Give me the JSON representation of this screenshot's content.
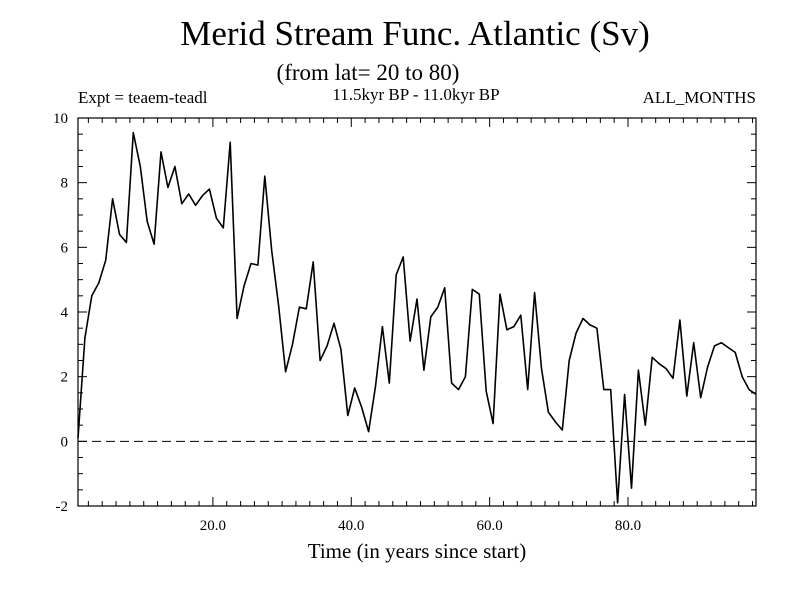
{
  "chart_data": {
    "type": "line",
    "title": "Merid Stream Func. Atlantic (Sv)",
    "subtitle": "(from lat= 20 to 80)",
    "annotations": {
      "left": "Expt = teaem-teadl",
      "center": "11.5kyr BP - 11.0kyr BP",
      "right": "ALL_MONTHS"
    },
    "xlabel": "Time (in years since start)",
    "ylabel": "",
    "xlim": [
      0.5,
      98.5
    ],
    "ylim": [
      -2,
      10
    ],
    "xticks": [
      20,
      40,
      60,
      80
    ],
    "xtick_labels": [
      "20.0",
      "40.0",
      "60.0",
      "80.0"
    ],
    "yticks": [
      -2,
      0,
      2,
      4,
      6,
      8,
      10
    ],
    "ytick_labels": [
      "-2",
      "0",
      "2",
      "4",
      "6",
      "8",
      "10"
    ],
    "reference_line": {
      "y": 0,
      "style": "dashed"
    },
    "series": [
      {
        "name": "Merid Stream Func.",
        "x": [
          0.5,
          1.5,
          2.5,
          3.5,
          4.5,
          5.5,
          6.5,
          7.5,
          8.5,
          9.5,
          10.5,
          11.5,
          12.5,
          13.5,
          14.5,
          15.5,
          16.5,
          17.5,
          18.5,
          19.5,
          20.5,
          21.5,
          22.5,
          23.5,
          24.5,
          25.5,
          26.5,
          27.5,
          28.5,
          29.5,
          30.5,
          31.5,
          32.5,
          33.5,
          34.5,
          35.5,
          36.5,
          37.5,
          38.5,
          39.5,
          40.5,
          41.5,
          42.5,
          43.5,
          44.5,
          45.5,
          46.5,
          47.5,
          48.5,
          49.5,
          50.5,
          51.5,
          52.5,
          53.5,
          54.5,
          55.5,
          56.5,
          57.5,
          58.5,
          59.5,
          60.5,
          61.5,
          62.5,
          63.5,
          64.5,
          65.5,
          66.5,
          67.5,
          68.5,
          69.5,
          70.5,
          71.5,
          72.5,
          73.5,
          74.5,
          75.5,
          76.5,
          77.5,
          78.5,
          79.5,
          80.5,
          81.5,
          82.5,
          83.5,
          84.5,
          85.5,
          86.5,
          87.5,
          88.5,
          89.5,
          90.5,
          91.5,
          92.5,
          93.5,
          94.5,
          95.5,
          96.5,
          97.5,
          98.5
        ],
        "values": [
          0.1,
          3.2,
          4.5,
          4.9,
          5.6,
          7.5,
          6.4,
          6.15,
          9.55,
          8.5,
          6.8,
          6.1,
          8.95,
          7.85,
          8.5,
          7.35,
          7.65,
          7.3,
          7.6,
          7.8,
          6.9,
          6.6,
          9.25,
          3.8,
          4.8,
          5.5,
          5.45,
          8.2,
          5.9,
          4.2,
          2.15,
          3.0,
          4.15,
          4.1,
          5.55,
          2.5,
          2.95,
          3.65,
          2.85,
          0.8,
          1.65,
          1.05,
          0.3,
          1.7,
          3.55,
          1.8,
          5.15,
          5.7,
          3.1,
          4.4,
          2.2,
          3.85,
          4.15,
          4.75,
          1.8,
          1.6,
          2.0,
          4.7,
          4.55,
          1.55,
          0.55,
          4.55,
          3.45,
          3.55,
          3.9,
          1.6,
          4.6,
          2.25,
          0.9,
          0.6,
          0.35,
          2.5,
          3.35,
          3.8,
          3.6,
          3.5,
          1.6,
          1.6,
          -1.9,
          1.45,
          -1.45,
          2.2,
          0.5,
          2.6,
          2.4,
          2.25,
          1.95,
          3.75,
          1.4,
          3.05,
          1.35,
          2.3,
          2.95,
          3.05,
          2.9,
          2.75,
          2.0,
          1.6,
          1.45
        ]
      }
    ]
  }
}
